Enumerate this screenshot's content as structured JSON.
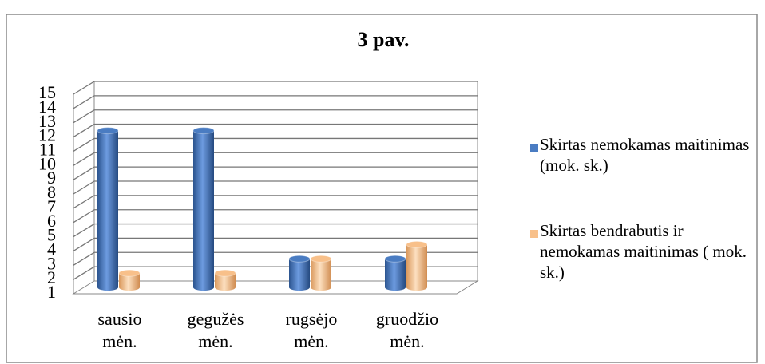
{
  "chart_data": {
    "type": "bar",
    "title": "3 pav.",
    "categories": [
      "sausio mėn.",
      "gegužės mėn.",
      "rugsėjo mėn.",
      "gruodžio mėn."
    ],
    "series": [
      {
        "name": "Skirtas nemokamas maitinimas (mok. sk.)",
        "color": "#4a7cc2",
        "values": [
          12,
          12,
          3,
          3
        ]
      },
      {
        "name": "Skirtas bendrabutis ir nemokamas maitinimas ( mok. sk.)",
        "color": "#f8c08a",
        "values": [
          2,
          2,
          3,
          4
        ]
      }
    ],
    "ylim": [
      1,
      15
    ],
    "yticks": [
      1,
      2,
      3,
      4,
      5,
      6,
      7,
      8,
      9,
      10,
      11,
      12,
      13,
      14,
      15
    ],
    "grid": true,
    "legend": "right"
  }
}
